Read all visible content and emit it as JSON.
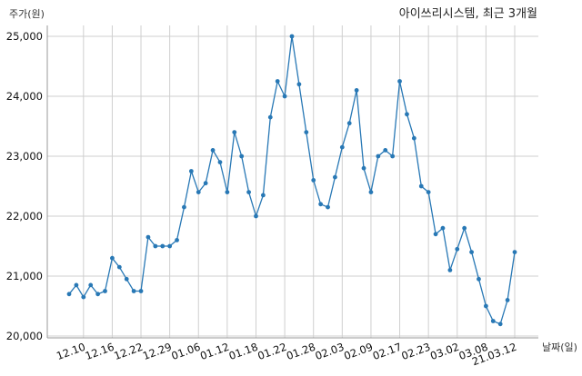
{
  "chart_data": {
    "type": "line",
    "title": "아이쓰리시스템, 최근 3개월",
    "xlabel": "날짜(일)",
    "ylabel": "주가(원)",
    "ylim": [
      20000,
      25000
    ],
    "yticks": [
      20000,
      21000,
      22000,
      23000,
      24000,
      25000
    ],
    "ytick_labels": [
      "20,000",
      "21,000",
      "22,000",
      "23,000",
      "24,000",
      "25,000"
    ],
    "xtick_labels": [
      "12.10",
      "12.16",
      "12.22",
      "12.29",
      "01.06",
      "01.12",
      "01.18",
      "01.22",
      "01.28",
      "02.03",
      "02.09",
      "02.17",
      "02.23",
      "03.02",
      "03.08",
      "21.03.12"
    ],
    "xtick_positions": [
      2,
      6,
      10,
      14,
      18,
      22,
      26,
      30,
      34,
      38,
      42,
      46,
      50,
      54,
      58,
      62
    ],
    "grid": true,
    "color": "#2878b5",
    "series": [
      {
        "values": [
          20700,
          20850,
          20650,
          20850,
          20700,
          20750,
          21300,
          21150,
          20950,
          20750,
          20750,
          21650,
          21500,
          21500,
          21500,
          21600,
          22150,
          22750,
          22400,
          22550,
          23100,
          22900,
          22400,
          23400,
          23000,
          22400,
          22000,
          22350,
          23650,
          24250,
          24000,
          25000,
          24200,
          23400,
          22600,
          22200,
          22150,
          22650,
          23150,
          23550,
          24100,
          22800,
          22400,
          23000,
          23100,
          23000,
          24250,
          23700,
          23300,
          22500,
          22400,
          21700,
          21800,
          21100,
          21450,
          21800,
          21400,
          20950,
          20500,
          20250,
          20200,
          20600,
          21400
        ]
      }
    ]
  }
}
